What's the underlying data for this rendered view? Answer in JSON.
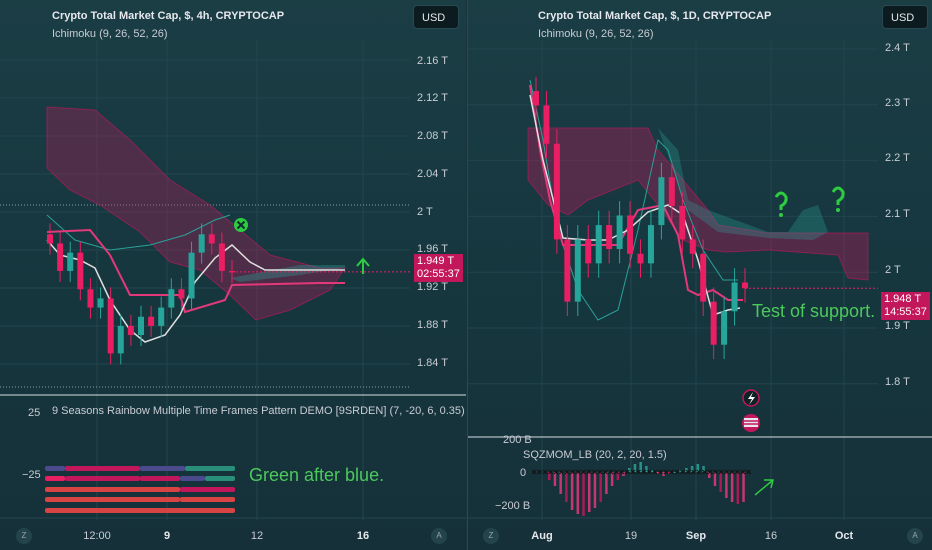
{
  "colors": {
    "cloud": "#c2185b",
    "tenkan": "#e0e0e0",
    "kijun": "#e3387a",
    "lagging": "#2aa198",
    "bull": "#26a69a",
    "bear": "#e91e63",
    "annotation": "#4cc95c"
  },
  "left": {
    "title": "Crypto Total Market Cap, $, 4h, CRYPTOCAP",
    "indicator": "Ichimoku (9, 26, 52, 26)",
    "currency_button": "USD",
    "price_tag_value": "1.949 T",
    "price_tag_timer": "02:55:37",
    "yticks": [
      "2.16 T",
      "2.12 T",
      "2.08 T",
      "2.04 T",
      "2 T",
      "1.96 T",
      "1.92 T",
      "1.88 T",
      "1.84 T"
    ],
    "sub_indicator": "9 Seasons Rainbow Multiple Time Frames Pattern DEMO [9SRDEN] (7, -20, 6, 0.35)",
    "sub_yticks": [
      "25",
      "−25"
    ],
    "annotation": "Green after blue.",
    "xticks": [
      "12:00",
      "9",
      "12",
      "16"
    ],
    "corner_left": "Z",
    "corner_right": "A"
  },
  "right": {
    "title": "Crypto Total Market Cap, $, 1D, CRYPTOCAP",
    "indicator": "Ichimoku (9, 26, 52, 26)",
    "currency_button": "USD",
    "price_tag_value": "1.948 T",
    "price_tag_timer": "14:55:37",
    "yticks": [
      "2.4 T",
      "2.3 T",
      "2.2 T",
      "2.1 T",
      "2 T",
      "1.9 T",
      "1.8 T"
    ],
    "annotation": "Test of support.",
    "sub_indicator": "SQZMOM_LB (20, 2, 20, 1.5)",
    "sub_yticks": [
      "200 B",
      "0",
      "−200 B"
    ],
    "xticks": [
      "Aug",
      "19",
      "Sep",
      "16",
      "Oct"
    ],
    "corner_left": "Z",
    "corner_right": "A"
  },
  "chart_data": [
    {
      "type": "line",
      "title": "Crypto Total Market Cap, $, 4h, CRYPTOCAP",
      "ylabel": "",
      "ylim": [
        1.82,
        2.2
      ],
      "xticks": [
        "12:00",
        "9",
        "12",
        "16"
      ],
      "series": [
        {
          "name": "Close",
          "values": [
            1.98,
            1.95,
            1.97,
            1.93,
            1.91,
            1.92,
            1.86,
            1.89,
            1.88,
            1.9,
            1.89,
            1.91,
            1.93,
            1.92,
            1.97,
            1.99,
            1.98,
            1.95,
            1.949
          ]
        }
      ],
      "last_price": 1.949
    },
    {
      "type": "line",
      "title": "Crypto Total Market Cap, $, 1D, CRYPTOCAP",
      "ylabel": "",
      "ylim": [
        1.75,
        2.45
      ],
      "xticks": [
        "Aug",
        "19",
        "Sep",
        "16",
        "Oct"
      ],
      "series": [
        {
          "name": "Close",
          "values": [
            2.33,
            2.25,
            2.05,
            1.92,
            2.05,
            2.0,
            2.08,
            2.03,
            2.1,
            2.02,
            2.0,
            2.08,
            2.18,
            2.12,
            2.05,
            2.02,
            1.92,
            1.83,
            1.9,
            1.96,
            1.948
          ]
        }
      ],
      "last_price": 1.948
    }
  ]
}
